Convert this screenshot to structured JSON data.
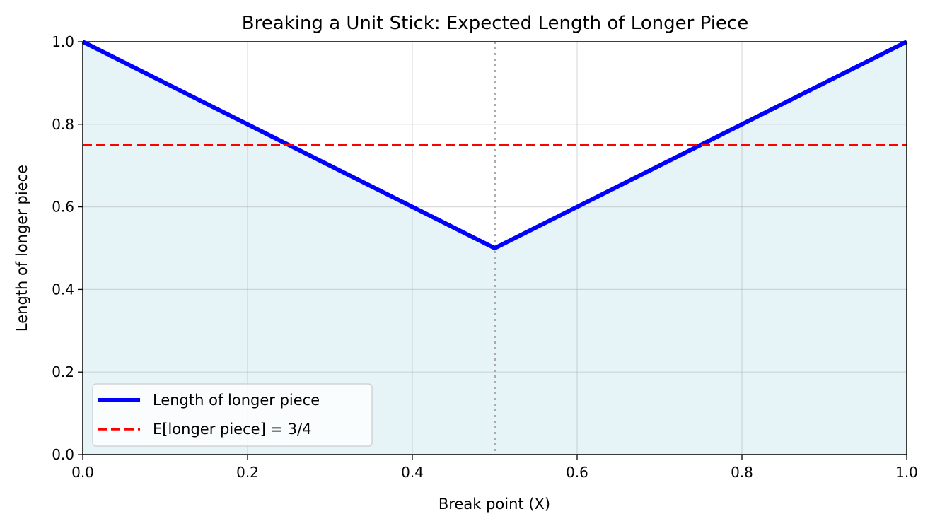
{
  "chart_data": {
    "type": "line",
    "title": "Breaking a Unit Stick: Expected Length of Longer Piece",
    "xlabel": "Break point (X)",
    "ylabel": "Length of longer piece",
    "xlim": [
      0.0,
      1.0
    ],
    "ylim": [
      0.0,
      1.0
    ],
    "x_ticks": [
      "0.0",
      "0.2",
      "0.4",
      "0.6",
      "0.8",
      "1.0"
    ],
    "y_ticks": [
      "0.0",
      "0.2",
      "0.4",
      "0.6",
      "0.8",
      "1.0"
    ],
    "grid": true,
    "legend_position": "lower-left",
    "series": [
      {
        "name": "Length of longer piece",
        "style": "solid",
        "color": "#0000ff",
        "fill_below": true,
        "fill_color": "#add8e6",
        "x": [
          0.0,
          0.5,
          1.0
        ],
        "y": [
          1.0,
          0.5,
          1.0
        ]
      },
      {
        "name": "E[longer piece] = 3/4",
        "style": "dashed",
        "color": "#ff0000",
        "x": [
          0.0,
          1.0
        ],
        "y": [
          0.75,
          0.75
        ]
      }
    ],
    "reference_lines": [
      {
        "orientation": "vertical",
        "x": 0.5,
        "style": "dotted",
        "color": "#aaaaaa"
      }
    ]
  }
}
